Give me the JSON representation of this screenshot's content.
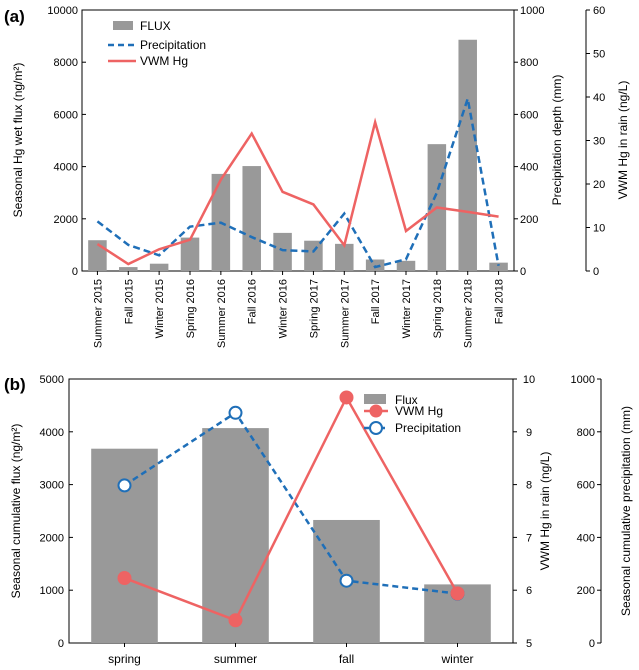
{
  "colors": {
    "bar": "#999999",
    "line_red": "#ee6363",
    "line_blue": "#1f6fb8"
  },
  "chart_data": [
    {
      "panel_label": "(a)",
      "type": "bar+line",
      "categories": [
        "Summer 2015",
        "Fall 2015",
        "Winter 2015",
        "Spring 2016",
        "Summer 2016",
        "Fall 2016",
        "Winter 2016",
        "Spring 2017",
        "Summer 2017",
        "Fall 2017",
        "Winter 2017",
        "Spring 2018",
        "Summer 2018",
        "Fall 2018"
      ],
      "series": [
        {
          "name": "FLUX",
          "kind": "bar",
          "axis": "left",
          "values": [
            1180,
            150,
            280,
            1280,
            3720,
            4020,
            1460,
            1160,
            1040,
            440,
            390,
            4860,
            8860,
            320
          ]
        },
        {
          "name": "Precipitation",
          "kind": "dashed-line",
          "axis": "right1",
          "values": [
            190,
            100,
            60,
            170,
            185,
            130,
            80,
            75,
            220,
            15,
            45,
            300,
            660,
            20
          ]
        },
        {
          "name": "VWM Hg",
          "kind": "line",
          "axis": "right2",
          "values": [
            6.2,
            1.6,
            5.0,
            7.2,
            21.0,
            31.6,
            18.2,
            15.3,
            5.9,
            34.2,
            9.2,
            14.6,
            13.6,
            12.5
          ]
        }
      ],
      "ylabel_left": "Seasonal Hg wet flux (ng/m²)",
      "ylabel_right1": "Precipitation depth (mm)",
      "ylabel_right2": "VWM Hg in rain (ng/L)",
      "ylim_left": [
        0,
        10000
      ],
      "yticks_left": [
        "0",
        "2000",
        "4000",
        "6000",
        "8000",
        "10000"
      ],
      "ylim_right1": [
        0,
        1000
      ],
      "yticks_right1": [
        "0",
        "200",
        "400",
        "600",
        "800",
        "1000"
      ],
      "ylim_right2": [
        0,
        60
      ],
      "yticks_right2": [
        "0",
        "10",
        "20",
        "30",
        "40",
        "50",
        "60"
      ],
      "legend": [
        "FLUX",
        "Precipitation",
        "VWM Hg"
      ],
      "legend_position": "top-left"
    },
    {
      "panel_label": "(b)",
      "type": "bar+line",
      "categories": [
        "spring",
        "summer",
        "fall",
        "winter"
      ],
      "series": [
        {
          "name": "Flux",
          "kind": "bar",
          "axis": "left",
          "values": [
            3680,
            4070,
            2330,
            1110
          ]
        },
        {
          "name": "VWM Hg",
          "kind": "line-filled-markers",
          "axis": "right1",
          "values": [
            6.23,
            5.43,
            9.65,
            5.94
          ]
        },
        {
          "name": "Precipitation",
          "kind": "dashed-line-open-markers",
          "axis": "right2",
          "values": [
            597,
            872,
            236,
            187
          ]
        }
      ],
      "ylabel_left": "Seasonal cumulative flux (ng/m²)",
      "ylabel_right1": "VWM Hg in rain (ng/L)",
      "ylabel_right2": "Seasonal cumulative precipitation (mm)",
      "ylim_left": [
        0,
        5000
      ],
      "yticks_left": [
        "0",
        "1000",
        "2000",
        "3000",
        "4000",
        "5000"
      ],
      "ylim_right1": [
        5,
        10
      ],
      "yticks_right1": [
        "5",
        "6",
        "7",
        "8",
        "9",
        "10"
      ],
      "ylim_right2": [
        0,
        1000
      ],
      "yticks_right2": [
        "0",
        "200",
        "400",
        "600",
        "800",
        "1000"
      ],
      "legend": [
        "Flux",
        "VWM Hg",
        "Precipitation"
      ],
      "legend_position": "top-right"
    }
  ]
}
